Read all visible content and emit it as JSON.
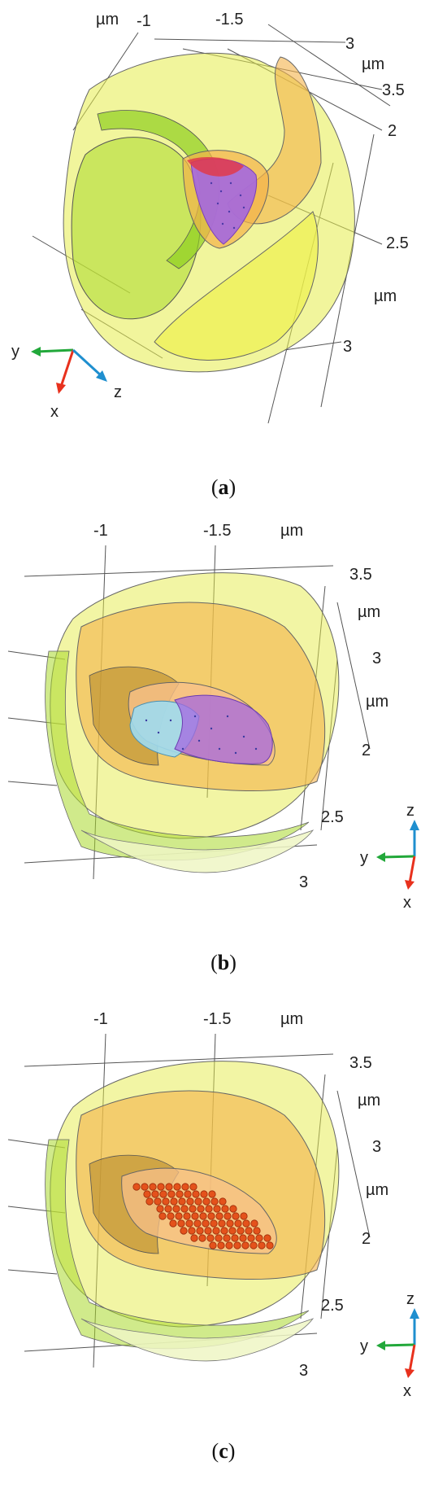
{
  "panels": [
    {
      "id": "a",
      "caption_open": "(",
      "caption_letter": "a",
      "caption_close": ")",
      "ticks": {
        "t1": "-1",
        "t2": "-1.5",
        "t3": "3",
        "t4": "3.5",
        "t5": "2",
        "t6": "2.5",
        "t7": "3"
      },
      "units": {
        "u1": "µm",
        "u2": "µm",
        "u3": "µm"
      },
      "axes": {
        "x": "x",
        "y": "y",
        "z": "z"
      }
    },
    {
      "id": "b",
      "caption_open": "(",
      "caption_letter": "b",
      "caption_close": ")",
      "ticks": {
        "t1": "-1",
        "t2": "-1.5",
        "t3": "3.5",
        "t4": "3",
        "t5": "2",
        "t6": "2.5",
        "t7": "3"
      },
      "units": {
        "u1": "µm",
        "u2": "µm",
        "u3": "µm"
      },
      "axes": {
        "x": "x",
        "y": "y",
        "z": "z"
      }
    },
    {
      "id": "c",
      "caption_open": "(",
      "caption_letter": "c",
      "caption_close": ")",
      "ticks": {
        "t1": "-1",
        "t2": "-1.5",
        "t3": "3.5",
        "t4": "3",
        "t5": "2",
        "t6": "2.5",
        "t7": "3"
      },
      "units": {
        "u1": "µm",
        "u2": "µm",
        "u3": "µm"
      },
      "axes": {
        "x": "x",
        "y": "y",
        "z": "z"
      }
    }
  ],
  "colors": {
    "outer_shell": "#e6ec4a",
    "inner_green": "#a9d92b",
    "orange_layer": "#f4b24a",
    "purple_core": "#a467e0",
    "red_tip": "#e0394a",
    "cyan_region": "#9fdcf0",
    "particle": "#e4521b",
    "axis_x": "#e8311d",
    "axis_y": "#22a83a",
    "axis_z": "#1f8fcf"
  }
}
